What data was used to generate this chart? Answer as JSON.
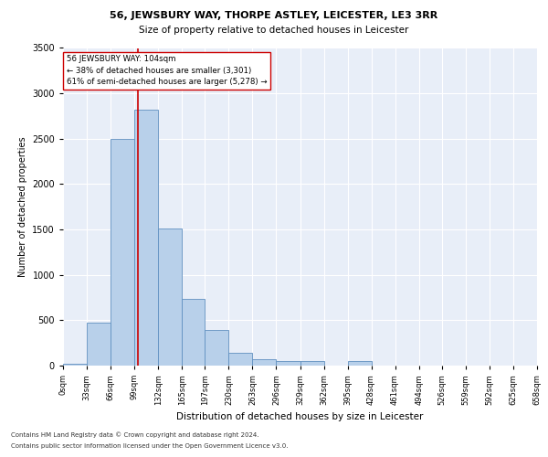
{
  "title": "56, JEWSBURY WAY, THORPE ASTLEY, LEICESTER, LE3 3RR",
  "subtitle": "Size of property relative to detached houses in Leicester",
  "xlabel": "Distribution of detached houses by size in Leicester",
  "ylabel": "Number of detached properties",
  "bin_edges": [
    0,
    33,
    66,
    99,
    132,
    165,
    197,
    230,
    263,
    296,
    329,
    362,
    395,
    428,
    461,
    494,
    526,
    559,
    592,
    625,
    658
  ],
  "bar_values": [
    20,
    470,
    2500,
    2820,
    1510,
    740,
    390,
    140,
    75,
    55,
    55,
    0,
    55,
    0,
    0,
    0,
    0,
    0,
    0,
    0
  ],
  "bar_color": "#b8d0ea",
  "bar_edge_color": "#6090c0",
  "property_size": 104,
  "red_line_color": "#cc0000",
  "annotation_text": "56 JEWSBURY WAY: 104sqm\n← 38% of detached houses are smaller (3,301)\n61% of semi-detached houses are larger (5,278) →",
  "annotation_box_color": "#ffffff",
  "annotation_border_color": "#cc0000",
  "ylim": [
    0,
    3500
  ],
  "yticks": [
    0,
    500,
    1000,
    1500,
    2000,
    2500,
    3000,
    3500
  ],
  "background_color": "#e8eef8",
  "grid_color": "#ffffff",
  "footer_line1": "Contains HM Land Registry data © Crown copyright and database right 2024.",
  "footer_line2": "Contains public sector information licensed under the Open Government Licence v3.0.",
  "tick_labels": [
    "0sqm",
    "33sqm",
    "66sqm",
    "99sqm",
    "132sqm",
    "165sqm",
    "197sqm",
    "230sqm",
    "263sqm",
    "296sqm",
    "329sqm",
    "362sqm",
    "395sqm",
    "428sqm",
    "461sqm",
    "494sqm",
    "526sqm",
    "559sqm",
    "592sqm",
    "625sqm",
    "658sqm"
  ]
}
